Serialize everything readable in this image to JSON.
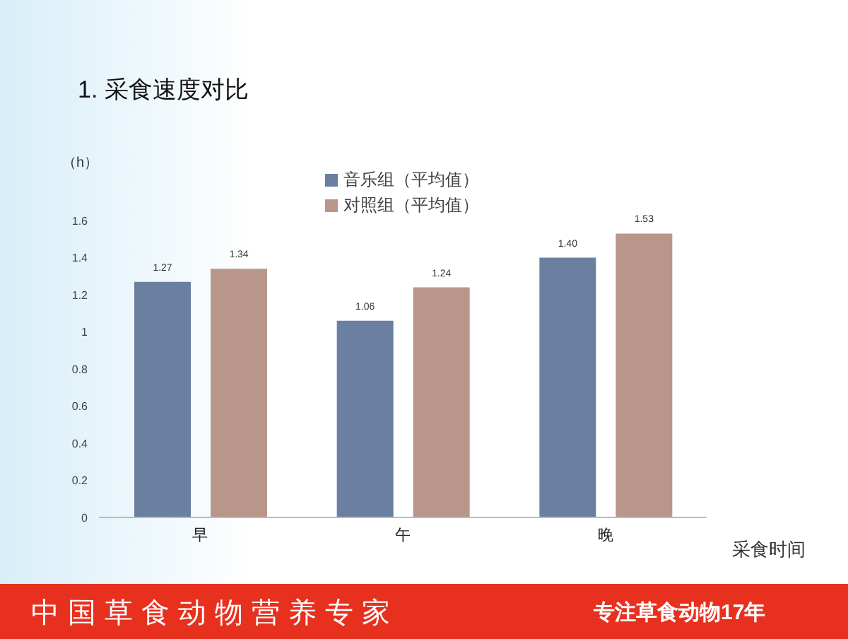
{
  "chart_data": {
    "type": "bar",
    "title": "1. 采食速度对比",
    "ylabel": "（h）",
    "xlabel": "采食时间",
    "categories": [
      "早",
      "午",
      "晚"
    ],
    "series": [
      {
        "name": "音乐组（平均值）",
        "color": "#6b7fa0",
        "values": [
          1.27,
          1.06,
          1.4
        ],
        "value_labels": [
          "1.27",
          "1.06",
          "1.40"
        ]
      },
      {
        "name": "对照组（平均值）",
        "color": "#b8978a",
        "values": [
          1.34,
          1.24,
          1.53
        ],
        "value_labels": [
          "1.34",
          "1.24",
          "1.53"
        ]
      }
    ],
    "ylim": [
      0,
      1.6
    ],
    "yticks": [
      0,
      0.2,
      0.4,
      0.6,
      0.8,
      1,
      1.2,
      1.4,
      1.6
    ],
    "legend": "top",
    "annotations": [
      "中国草食动物营养专家",
      "专注草食动物17年"
    ]
  }
}
